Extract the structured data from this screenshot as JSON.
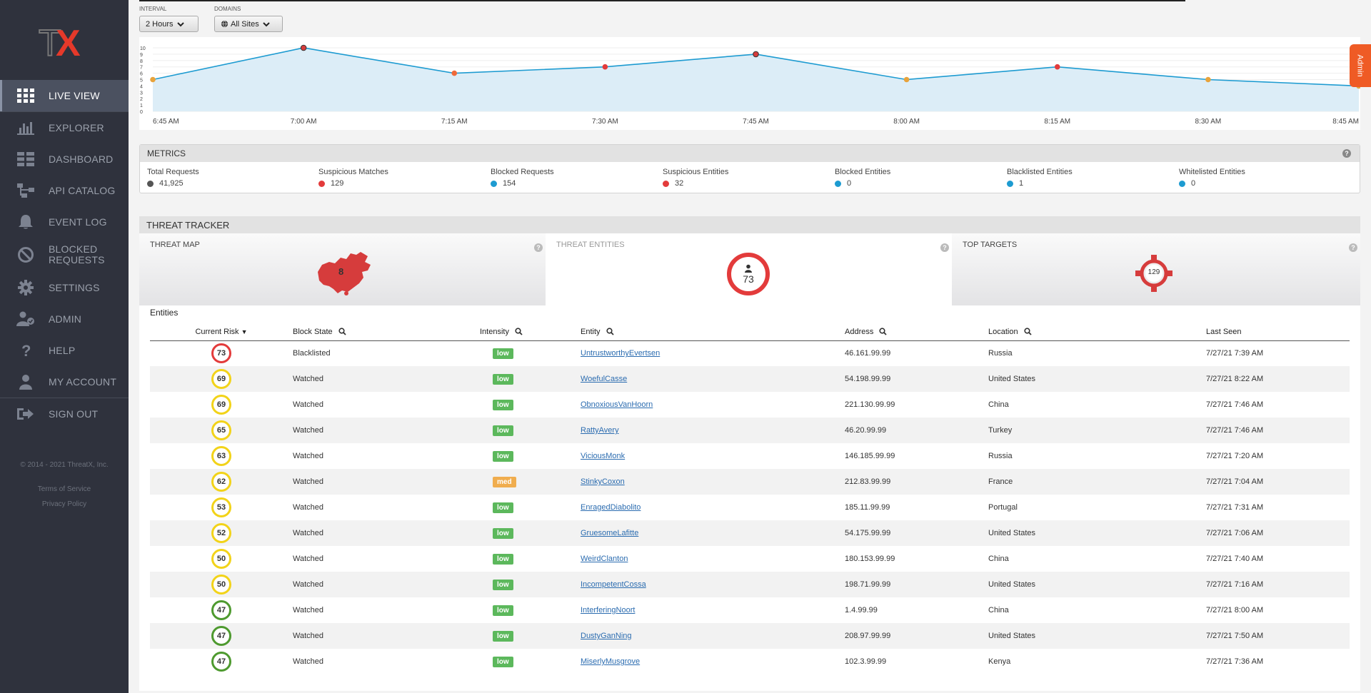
{
  "brand": {
    "logo_text_t": "T",
    "logo_text_x": "X"
  },
  "nav": [
    {
      "label": "LIVE VIEW",
      "icon": "grid-icon",
      "active": true
    },
    {
      "label": "EXPLORER",
      "icon": "bar-chart-icon"
    },
    {
      "label": "DASHBOARD",
      "icon": "dashboard-icon"
    },
    {
      "label": "API CATALOG",
      "icon": "api-icon"
    },
    {
      "label": "EVENT LOG",
      "icon": "bell-icon"
    },
    {
      "label": "BLOCKED",
      "label2": "REQUESTS",
      "icon": "block-icon"
    },
    {
      "label": "SETTINGS",
      "icon": "gear-icon"
    },
    {
      "label": "ADMIN",
      "icon": "admin-user-icon"
    },
    {
      "label": "HELP",
      "icon": "help-icon"
    },
    {
      "label": "MY ACCOUNT",
      "icon": "user-icon"
    },
    {
      "label": "SIGN OUT",
      "icon": "sign-out-icon"
    }
  ],
  "footer": {
    "copyright": "© 2014 - 2021 ThreatX, Inc.",
    "terms": "Terms of Service",
    "privacy": "Privacy Policy"
  },
  "controls": {
    "interval_label": "INTERVAL",
    "interval_value": "2 Hours",
    "domains_label": "DOMAINS",
    "domains_value": "All Sites"
  },
  "admin_tab": "Admin",
  "chart_data": {
    "type": "area",
    "x": [
      "6:45 AM",
      "7:00 AM",
      "7:15 AM",
      "7:30 AM",
      "7:45 AM",
      "8:00 AM",
      "8:15 AM",
      "8:30 AM",
      "8:45 AM"
    ],
    "values": [
      5,
      10,
      6,
      7,
      9,
      5,
      7,
      5,
      4
    ],
    "point_colors": [
      "#e8a33b",
      "#d63c3c",
      "#ef6a3a",
      "#e33b3b",
      "#d63c3c",
      "#e8a33b",
      "#e33b3b",
      "#e8a33b",
      "#e8a33b"
    ],
    "yticks": [
      0,
      1,
      2,
      3,
      4,
      5,
      6,
      7,
      8,
      9,
      10
    ],
    "ylim": [
      0,
      10
    ],
    "line_color": "#1d9bd1",
    "fill_color": "#dcedf7"
  },
  "metrics": {
    "title": "METRICS",
    "items": [
      {
        "label": "Total Requests",
        "value": "41,925",
        "color": "#555555"
      },
      {
        "label": "Suspicious Matches",
        "value": "129",
        "color": "#e33b3b"
      },
      {
        "label": "Blocked Requests",
        "value": "154",
        "color": "#1d9bd1"
      },
      {
        "label": "Suspicious Entities",
        "value": "32",
        "color": "#e33b3b"
      },
      {
        "label": "Blocked Entities",
        "value": "0",
        "color": "#1d9bd1"
      },
      {
        "label": "Blacklisted Entities",
        "value": "1",
        "color": "#1d9bd1"
      },
      {
        "label": "Whitelisted Entities",
        "value": "0",
        "color": "#1d9bd1"
      }
    ]
  },
  "tracker": {
    "title": "THREAT TRACKER",
    "threat_map": {
      "title": "THREAT MAP",
      "count": "8"
    },
    "threat_entities": {
      "title": "THREAT ENTITIES",
      "count": "73"
    },
    "top_targets": {
      "title": "TOP TARGETS",
      "count": "129"
    },
    "entities_label": "Entities",
    "columns": [
      "Current Risk",
      "Block State",
      "Intensity",
      "Entity",
      "Address",
      "Location",
      "Last Seen"
    ],
    "rows": [
      {
        "risk": "73",
        "risk_color": "#e33b3b",
        "state": "Blacklisted",
        "intensity": "low",
        "entity": "UntrustworthyEvertsen",
        "address": "46.161.99.99",
        "location": "Russia",
        "last_seen": "7/27/21 7:39 AM"
      },
      {
        "risk": "69",
        "risk_color": "#f2d319",
        "state": "Watched",
        "intensity": "low",
        "entity": "WoefulCasse",
        "address": "54.198.99.99",
        "location": "United States",
        "last_seen": "7/27/21 8:22 AM"
      },
      {
        "risk": "69",
        "risk_color": "#f2d319",
        "state": "Watched",
        "intensity": "low",
        "entity": "ObnoxiousVanHoorn",
        "address": "221.130.99.99",
        "location": "China",
        "last_seen": "7/27/21 7:46 AM"
      },
      {
        "risk": "65",
        "risk_color": "#f2d319",
        "state": "Watched",
        "intensity": "low",
        "entity": "RattyAvery",
        "address": "46.20.99.99",
        "location": "Turkey",
        "last_seen": "7/27/21 7:46 AM"
      },
      {
        "risk": "63",
        "risk_color": "#f2d319",
        "state": "Watched",
        "intensity": "low",
        "entity": "ViciousMonk",
        "address": "146.185.99.99",
        "location": "Russia",
        "last_seen": "7/27/21 7:20 AM"
      },
      {
        "risk": "62",
        "risk_color": "#f2d319",
        "state": "Watched",
        "intensity": "med",
        "entity": "StinkyCoxon",
        "address": "212.83.99.99",
        "location": "France",
        "last_seen": "7/27/21 7:04 AM"
      },
      {
        "risk": "53",
        "risk_color": "#f2d319",
        "state": "Watched",
        "intensity": "low",
        "entity": "EnragedDiabolito",
        "address": "185.11.99.99",
        "location": "Portugal",
        "last_seen": "7/27/21 7:31 AM"
      },
      {
        "risk": "52",
        "risk_color": "#f2d319",
        "state": "Watched",
        "intensity": "low",
        "entity": "GruesomeLafitte",
        "address": "54.175.99.99",
        "location": "United States",
        "last_seen": "7/27/21 7:06 AM"
      },
      {
        "risk": "50",
        "risk_color": "#f2d319",
        "state": "Watched",
        "intensity": "low",
        "entity": "WeirdClanton",
        "address": "180.153.99.99",
        "location": "China",
        "last_seen": "7/27/21 7:40 AM"
      },
      {
        "risk": "50",
        "risk_color": "#f2d319",
        "state": "Watched",
        "intensity": "low",
        "entity": "IncompetentCossa",
        "address": "198.71.99.99",
        "location": "United States",
        "last_seen": "7/27/21 7:16 AM"
      },
      {
        "risk": "47",
        "risk_color": "#4e9a2f",
        "state": "Watched",
        "intensity": "low",
        "entity": "InterferingNoort",
        "address": "1.4.99.99",
        "location": "China",
        "last_seen": "7/27/21 8:00 AM"
      },
      {
        "risk": "47",
        "risk_color": "#4e9a2f",
        "state": "Watched",
        "intensity": "low",
        "entity": "DustyGanNing",
        "address": "208.97.99.99",
        "location": "United States",
        "last_seen": "7/27/21 7:50 AM"
      },
      {
        "risk": "47",
        "risk_color": "#4e9a2f",
        "state": "Watched",
        "intensity": "low",
        "entity": "MiserlyMusgrove",
        "address": "102.3.99.99",
        "location": "Kenya",
        "last_seen": "7/27/21 7:36 AM"
      }
    ],
    "intensity_colors": {
      "low": "#5cb85c",
      "med": "#f0ad4e"
    }
  }
}
